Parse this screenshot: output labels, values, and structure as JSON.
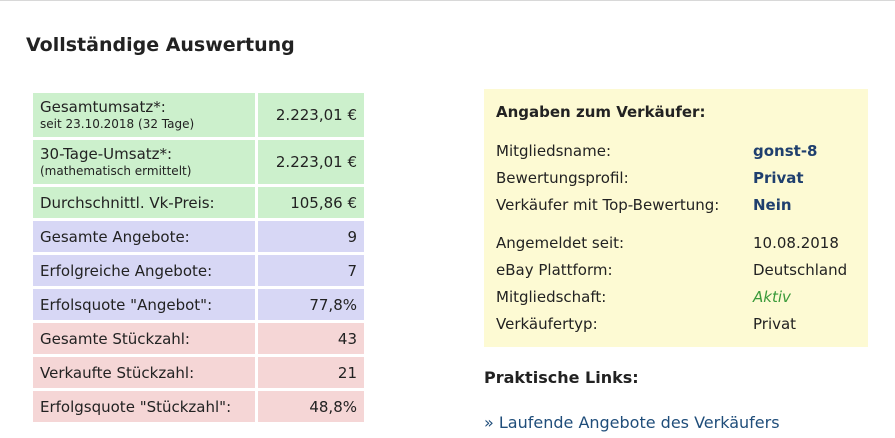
{
  "page_title": "Vollständige Auswertung",
  "stats": [
    {
      "label": "Gesamtumsatz*:",
      "sub": "seit 23.10.2018 (32 Tage)",
      "value": "2.223,01 €",
      "group": "green"
    },
    {
      "label": "30-Tage-Umsatz*:",
      "sub": "(mathematisch ermittelt)",
      "value": "2.223,01 €",
      "group": "green"
    },
    {
      "label": "Durchschnittl. Vk-Preis:",
      "value": "105,86 €",
      "group": "green"
    },
    {
      "label": "Gesamte Angebote:",
      "value": "9",
      "group": "blue"
    },
    {
      "label": "Erfolgreiche Angebote:",
      "value": "7",
      "group": "blue"
    },
    {
      "label": "Erfolsquote \"Angebot\":",
      "value": "77,8%",
      "group": "blue"
    },
    {
      "label": "Gesamte Stückzahl:",
      "value": "43",
      "group": "red"
    },
    {
      "label": "Verkaufte Stückzahl:",
      "value": "21",
      "group": "red"
    },
    {
      "label": "Erfolgsquote \"Stückzahl\":",
      "value": "48,8%",
      "group": "red"
    }
  ],
  "seller": {
    "title": "Angaben zum Verkäufer:",
    "member_name_label": "Mitgliedsname:",
    "member_name": "gonst-8",
    "rating_profile_label": "Bewertungsprofil:",
    "rating_profile": "Privat",
    "top_rated_label": "Verkäufer mit Top-Bewertung:",
    "top_rated": "Nein",
    "registered_label": "Angemeldet seit:",
    "registered": "10.08.2018",
    "platform_label": "eBay Plattform:",
    "platform": "Deutschland",
    "membership_label": "Mitgliedschaft:",
    "membership": "Aktiv",
    "seller_type_label": "Verkäufertyp:",
    "seller_type": "Privat"
  },
  "links": {
    "title": "Praktische Links:",
    "items": [
      {
        "label": "» Laufende Angebote des Verkäufers"
      }
    ]
  }
}
